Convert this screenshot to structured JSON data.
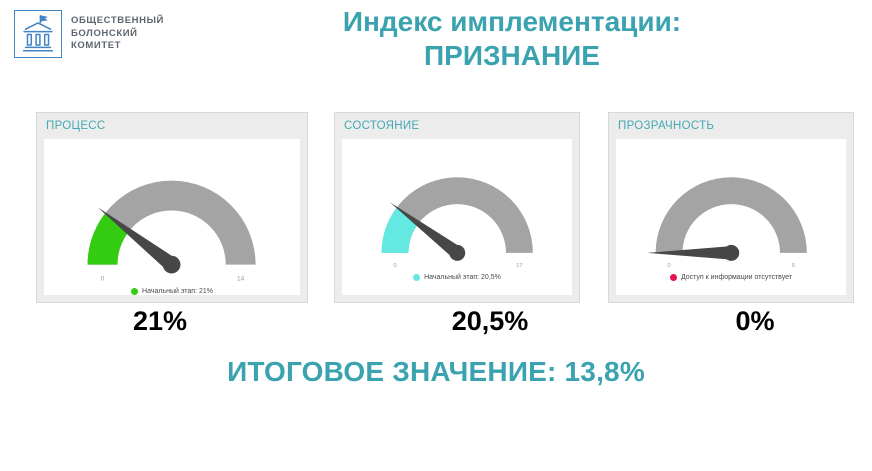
{
  "logo": {
    "lines": [
      "ОБЩЕСТВЕННЫЙ",
      "БОЛОНСКИЙ",
      "КОМИТЕТ"
    ]
  },
  "title": {
    "line1": "Индекс имплементации:",
    "line2": "ПРИЗНАНИЕ"
  },
  "colors": {
    "accent_teal": "#3ba3b0",
    "panel_header_teal": "#45a9b3",
    "gauge_track_gray": "#a4a4a4",
    "needle_gray": "#474747",
    "logo_blue": "#4285c4",
    "value_text": "#000000"
  },
  "chart_data": [
    {
      "type": "gauge",
      "title": "ПРОЦЕСС",
      "value_percent": 21,
      "value_label": "21%",
      "min_label": "0",
      "max_label": "14",
      "range_percent": [
        0,
        100
      ],
      "segment_color": "#33cc11",
      "legend_color": "#33cc11",
      "legend": "Начальный этап: 21%"
    },
    {
      "type": "gauge",
      "title": "СОСТОЯНИЕ",
      "value_percent": 20.5,
      "value_label": "20,5%",
      "min_label": "0",
      "max_label": "17",
      "range_percent": [
        0,
        100
      ],
      "segment_color": "#63e9e2",
      "legend_color": "#63e9e2",
      "legend": "Начальный этап: 20,5%"
    },
    {
      "type": "gauge",
      "title": "ПРОЗРАЧНОСТЬ",
      "value_percent": 0,
      "value_label": "0%",
      "min_label": "0",
      "max_label": "5",
      "range_percent": [
        0,
        100
      ],
      "segment_color": "#e3134e",
      "legend_color": "#e3134e",
      "legend": "Доступ к информации отсутствует"
    }
  ],
  "footer": {
    "total_label": "ИТОГОВОЕ ЗНАЧЕНИЕ: 13,8%"
  }
}
